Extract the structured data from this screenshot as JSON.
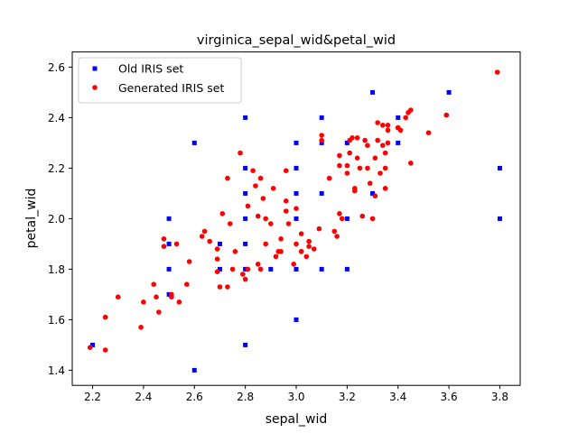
{
  "chart_data": {
    "type": "scatter",
    "title": "virginica_sepal_wid&petal_wid",
    "xlabel": "sepal_wid",
    "ylabel": "petal_wid",
    "xlim": [
      2.12,
      3.88
    ],
    "ylim": [
      1.34,
      2.66
    ],
    "xticks": [
      2.2,
      2.4,
      2.6,
      2.8,
      3.0,
      3.2,
      3.4,
      3.6,
      3.8
    ],
    "xtick_labels": [
      "2.2",
      "2.4",
      "2.6",
      "2.8",
      "3.0",
      "3.2",
      "3.4",
      "3.6",
      "3.8"
    ],
    "yticks": [
      1.4,
      1.6,
      1.8,
      2.0,
      2.2,
      2.4,
      2.6
    ],
    "ytick_labels": [
      "1.4",
      "1.6",
      "1.8",
      "2.0",
      "2.2",
      "2.4",
      "2.6"
    ],
    "grid": false,
    "legend_position": "top-left",
    "series": [
      {
        "name": "Old IRIS set",
        "marker": "square",
        "color": "#0000ff",
        "points": [
          [
            2.2,
            1.5
          ],
          [
            2.5,
            2.0
          ],
          [
            2.5,
            1.9
          ],
          [
            2.5,
            1.8
          ],
          [
            2.5,
            1.7
          ],
          [
            2.6,
            2.3
          ],
          [
            2.6,
            1.4
          ],
          [
            2.7,
            1.9
          ],
          [
            2.7,
            1.8
          ],
          [
            2.8,
            2.4
          ],
          [
            2.8,
            2.2
          ],
          [
            2.8,
            2.1
          ],
          [
            2.8,
            2.0
          ],
          [
            2.8,
            1.9
          ],
          [
            2.8,
            1.8
          ],
          [
            2.8,
            1.5
          ],
          [
            2.9,
            1.8
          ],
          [
            3.0,
            2.3
          ],
          [
            3.0,
            2.2
          ],
          [
            3.0,
            2.1
          ],
          [
            3.0,
            2.0
          ],
          [
            3.0,
            1.8
          ],
          [
            3.0,
            1.6
          ],
          [
            3.1,
            2.4
          ],
          [
            3.1,
            2.3
          ],
          [
            3.1,
            2.1
          ],
          [
            3.1,
            1.8
          ],
          [
            3.2,
            2.3
          ],
          [
            3.2,
            2.0
          ],
          [
            3.2,
            1.8
          ],
          [
            3.3,
            2.5
          ],
          [
            3.3,
            2.1
          ],
          [
            3.4,
            2.4
          ],
          [
            3.4,
            2.3
          ],
          [
            3.6,
            2.5
          ],
          [
            3.8,
            2.2
          ],
          [
            3.8,
            2.0
          ]
        ]
      },
      {
        "name": "Generated IRIS set",
        "marker": "circle",
        "color": "#ff0000",
        "points": [
          [
            2.19,
            1.49
          ],
          [
            2.25,
            1.61
          ],
          [
            2.25,
            1.48
          ],
          [
            2.3,
            1.69
          ],
          [
            2.39,
            1.57
          ],
          [
            2.4,
            1.67
          ],
          [
            2.44,
            1.74
          ],
          [
            2.45,
            1.69
          ],
          [
            2.46,
            1.63
          ],
          [
            2.48,
            1.92
          ],
          [
            2.48,
            1.89
          ],
          [
            2.51,
            1.69
          ],
          [
            2.51,
            1.7
          ],
          [
            2.53,
            1.9
          ],
          [
            2.54,
            1.67
          ],
          [
            2.57,
            1.74
          ],
          [
            2.58,
            1.83
          ],
          [
            2.63,
            1.93
          ],
          [
            2.64,
            1.95
          ],
          [
            2.66,
            1.91
          ],
          [
            2.69,
            1.79
          ],
          [
            2.69,
            1.88
          ],
          [
            2.69,
            1.84
          ],
          [
            2.7,
            1.73
          ],
          [
            2.71,
            2.02
          ],
          [
            2.73,
            2.16
          ],
          [
            2.73,
            1.73
          ],
          [
            2.74,
            1.98
          ],
          [
            2.75,
            1.8
          ],
          [
            2.76,
            1.87
          ],
          [
            2.78,
            2.26
          ],
          [
            2.79,
            1.78
          ],
          [
            2.8,
            1.76
          ],
          [
            2.81,
            2.05
          ],
          [
            2.81,
            1.8
          ],
          [
            2.83,
            2.19
          ],
          [
            2.84,
            2.13
          ],
          [
            2.85,
            1.82
          ],
          [
            2.85,
            2.01
          ],
          [
            2.86,
            2.16
          ],
          [
            2.86,
            1.8
          ],
          [
            2.87,
            2.08
          ],
          [
            2.88,
            1.9
          ],
          [
            2.88,
            2.0
          ],
          [
            2.9,
            1.98
          ],
          [
            2.91,
            2.12
          ],
          [
            2.92,
            1.85
          ],
          [
            2.93,
            1.87
          ],
          [
            2.94,
            1.92
          ],
          [
            2.94,
            1.87
          ],
          [
            2.96,
            2.19
          ],
          [
            2.96,
            2.07
          ],
          [
            2.96,
            2.03
          ],
          [
            2.97,
            1.98
          ],
          [
            2.99,
            1.82
          ],
          [
            3.0,
            1.9
          ],
          [
            3.0,
            2.04
          ],
          [
            3.02,
            1.87
          ],
          [
            3.02,
            1.87
          ],
          [
            3.02,
            1.94
          ],
          [
            3.04,
            1.85
          ],
          [
            3.05,
            1.89
          ],
          [
            3.05,
            1.91
          ],
          [
            3.07,
            1.88
          ],
          [
            3.09,
            1.96
          ],
          [
            3.1,
            2.31
          ],
          [
            3.1,
            2.33
          ],
          [
            3.13,
            2.16
          ],
          [
            3.15,
            1.95
          ],
          [
            3.16,
            1.93
          ],
          [
            3.17,
            2.02
          ],
          [
            3.17,
            2.21
          ],
          [
            3.17,
            2.25
          ],
          [
            3.18,
            2.0
          ],
          [
            3.2,
            2.18
          ],
          [
            3.2,
            2.21
          ],
          [
            3.21,
            2.31
          ],
          [
            3.21,
            2.26
          ],
          [
            3.22,
            2.32
          ],
          [
            3.23,
            2.12
          ],
          [
            3.23,
            2.11
          ],
          [
            3.24,
            2.24
          ],
          [
            3.24,
            2.32
          ],
          [
            3.25,
            2.2
          ],
          [
            3.26,
            2.01
          ],
          [
            3.27,
            2.31
          ],
          [
            3.28,
            2.29
          ],
          [
            3.28,
            2.2
          ],
          [
            3.29,
            2.14
          ],
          [
            3.3,
            2.0
          ],
          [
            3.31,
            2.09
          ],
          [
            3.31,
            2.24
          ],
          [
            3.32,
            2.38
          ],
          [
            3.32,
            2.31
          ],
          [
            3.33,
            2.18
          ],
          [
            3.34,
            2.29
          ],
          [
            3.34,
            2.37
          ],
          [
            3.35,
            2.26
          ],
          [
            3.35,
            2.2
          ],
          [
            3.35,
            2.12
          ],
          [
            3.36,
            2.37
          ],
          [
            3.36,
            2.3
          ],
          [
            3.36,
            2.35
          ],
          [
            3.4,
            2.36
          ],
          [
            3.4,
            2.36
          ],
          [
            3.41,
            2.35
          ],
          [
            3.43,
            2.4
          ],
          [
            3.44,
            2.42
          ],
          [
            3.45,
            2.43
          ],
          [
            3.45,
            2.22
          ],
          [
            3.52,
            2.34
          ],
          [
            3.59,
            2.41
          ],
          [
            3.79,
            2.58
          ]
        ]
      }
    ]
  }
}
